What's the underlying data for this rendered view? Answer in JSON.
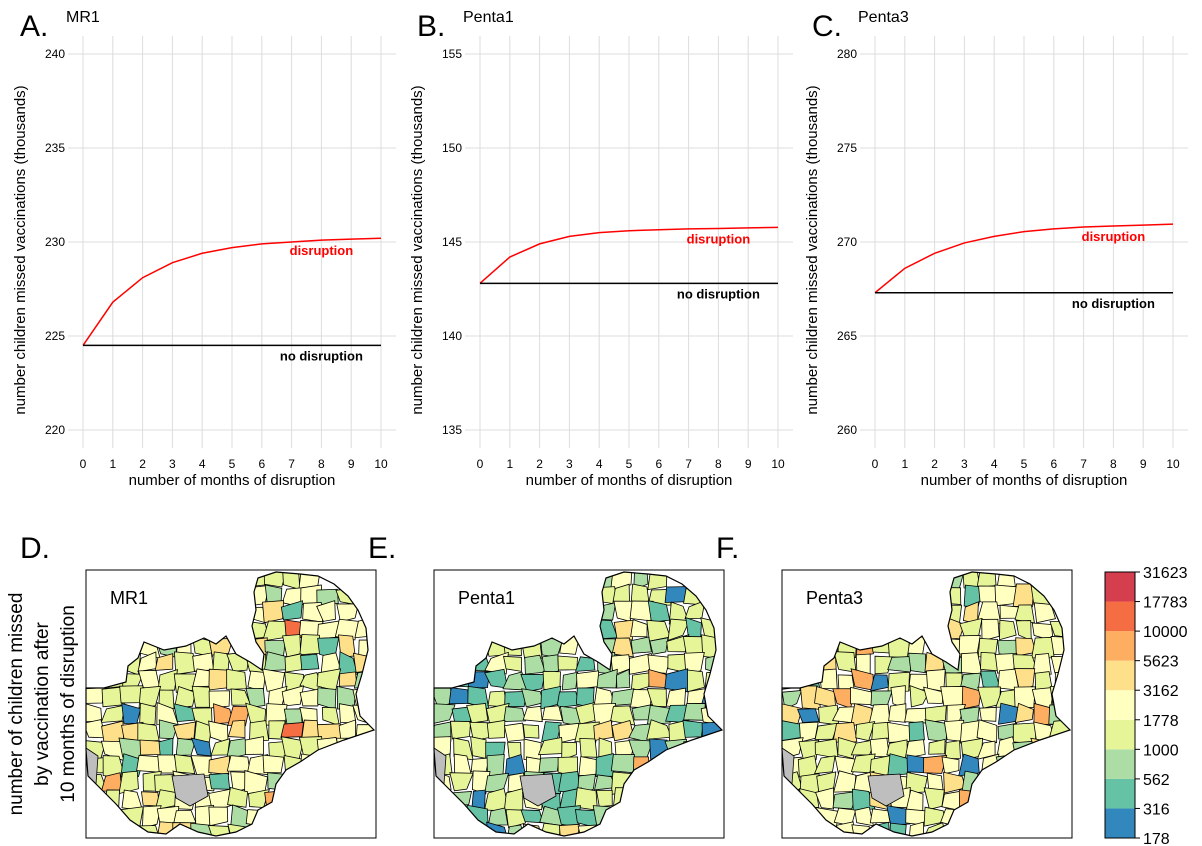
{
  "chart_data": [
    {
      "panel_letter": "A.",
      "title": "MR1",
      "type": "line",
      "xlabel": "number of months of disruption",
      "ylabel": "number children missed vaccinations (thousands)",
      "x": [
        0,
        1,
        2,
        3,
        4,
        5,
        6,
        7,
        8,
        9,
        10
      ],
      "xlim": [
        0,
        10
      ],
      "ylim": [
        220,
        240
      ],
      "yticks": [
        220,
        225,
        230,
        235,
        240
      ],
      "grid": true,
      "series": [
        {
          "name": "disruption",
          "color": "#ff0000",
          "values": [
            224.5,
            226.8,
            228.1,
            228.9,
            229.4,
            229.7,
            229.9,
            230.0,
            230.1,
            230.15,
            230.2
          ]
        },
        {
          "name": "no disruption",
          "color": "#000000",
          "values": [
            224.5,
            224.5,
            224.5,
            224.5,
            224.5,
            224.5,
            224.5,
            224.5,
            224.5,
            224.5,
            224.5
          ]
        }
      ]
    },
    {
      "panel_letter": "B.",
      "title": "Penta1",
      "type": "line",
      "xlabel": "number of months of disruption",
      "ylabel": "number children missed vaccinations (thousands)",
      "x": [
        0,
        1,
        2,
        3,
        4,
        5,
        6,
        7,
        8,
        9,
        10
      ],
      "xlim": [
        0,
        10
      ],
      "ylim": [
        135,
        155
      ],
      "yticks": [
        135,
        140,
        145,
        150,
        155
      ],
      "grid": true,
      "series": [
        {
          "name": "disruption",
          "color": "#ff0000",
          "values": [
            142.8,
            144.2,
            144.9,
            145.3,
            145.5,
            145.6,
            145.65,
            145.7,
            145.72,
            145.75,
            145.78
          ]
        },
        {
          "name": "no disruption",
          "color": "#000000",
          "values": [
            142.8,
            142.8,
            142.8,
            142.8,
            142.8,
            142.8,
            142.8,
            142.8,
            142.8,
            142.8,
            142.8
          ]
        }
      ]
    },
    {
      "panel_letter": "C.",
      "title": "Penta3",
      "type": "line",
      "xlabel": "number of months of disruption",
      "ylabel": "number children missed vaccinations (thousands)",
      "x": [
        0,
        1,
        2,
        3,
        4,
        5,
        6,
        7,
        8,
        9,
        10
      ],
      "xlim": [
        0,
        10
      ],
      "ylim": [
        260,
        280
      ],
      "yticks": [
        260,
        265,
        270,
        275,
        280
      ],
      "grid": true,
      "series": [
        {
          "name": "disruption",
          "color": "#ff0000",
          "values": [
            267.3,
            268.6,
            269.4,
            269.95,
            270.3,
            270.55,
            270.7,
            270.8,
            270.85,
            270.9,
            270.95
          ]
        },
        {
          "name": "no disruption",
          "color": "#000000",
          "values": [
            267.3,
            267.3,
            267.3,
            267.3,
            267.3,
            267.3,
            267.3,
            267.3,
            267.3,
            267.3,
            267.3
          ]
        }
      ]
    }
  ],
  "maps": {
    "ylabel_lines": [
      "number of children missed",
      "by vaccination after",
      "10 months of disruption"
    ],
    "panels": [
      {
        "letter": "D.",
        "title": "MR1"
      },
      {
        "letter": "E.",
        "title": "Penta1"
      },
      {
        "letter": "F.",
        "title": "Penta3"
      }
    ],
    "legend": {
      "labels": [
        "31623",
        "17783",
        "10000",
        "5623",
        "3162",
        "1778",
        "1000",
        "562",
        "316",
        "178"
      ],
      "colors": [
        "#d53e4f",
        "#f46d43",
        "#fdae61",
        "#fee08b",
        "#ffffbf",
        "#e6f598",
        "#abdda4",
        "#66c2a5",
        "#3288bd"
      ]
    }
  }
}
